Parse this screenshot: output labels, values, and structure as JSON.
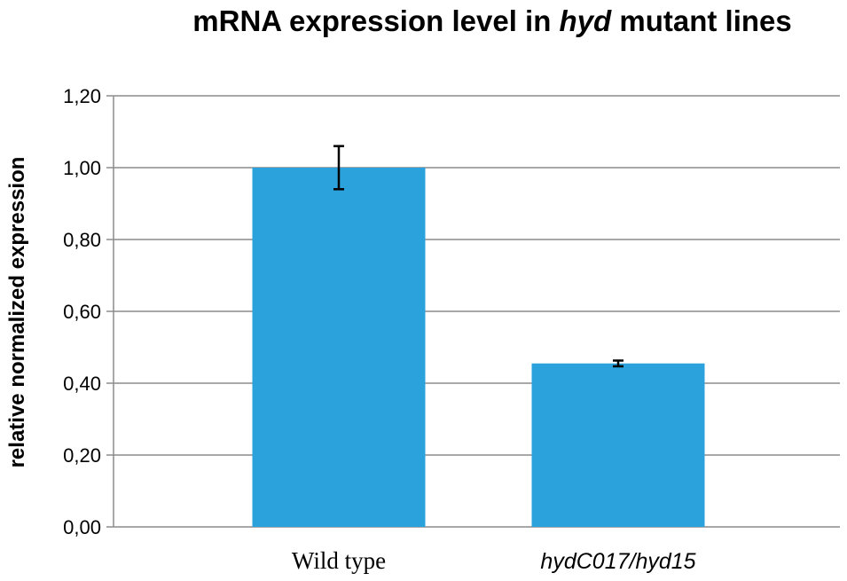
{
  "chart_data": {
    "type": "bar",
    "title_pre": "mRNA expression level in ",
    "title_italic": "hyd",
    "title_post": " mutant lines",
    "ylabel": "relative normalized expression",
    "xlabel": "",
    "categories": [
      "Wild type",
      "hydC017/hyd15"
    ],
    "values": [
      1.0,
      0.455
    ],
    "errors": [
      0.06,
      0.008
    ],
    "ylim": [
      0,
      1.2
    ],
    "yticks": [
      0,
      0.2,
      0.4,
      0.6,
      0.8,
      1.0,
      1.2
    ],
    "ytick_labels": [
      "0,00",
      "0,20",
      "0,40",
      "0,60",
      "0,80",
      "1,00",
      "1,20"
    ],
    "bar_color": "#2ba2dc",
    "grid": true,
    "legend": "none"
  }
}
